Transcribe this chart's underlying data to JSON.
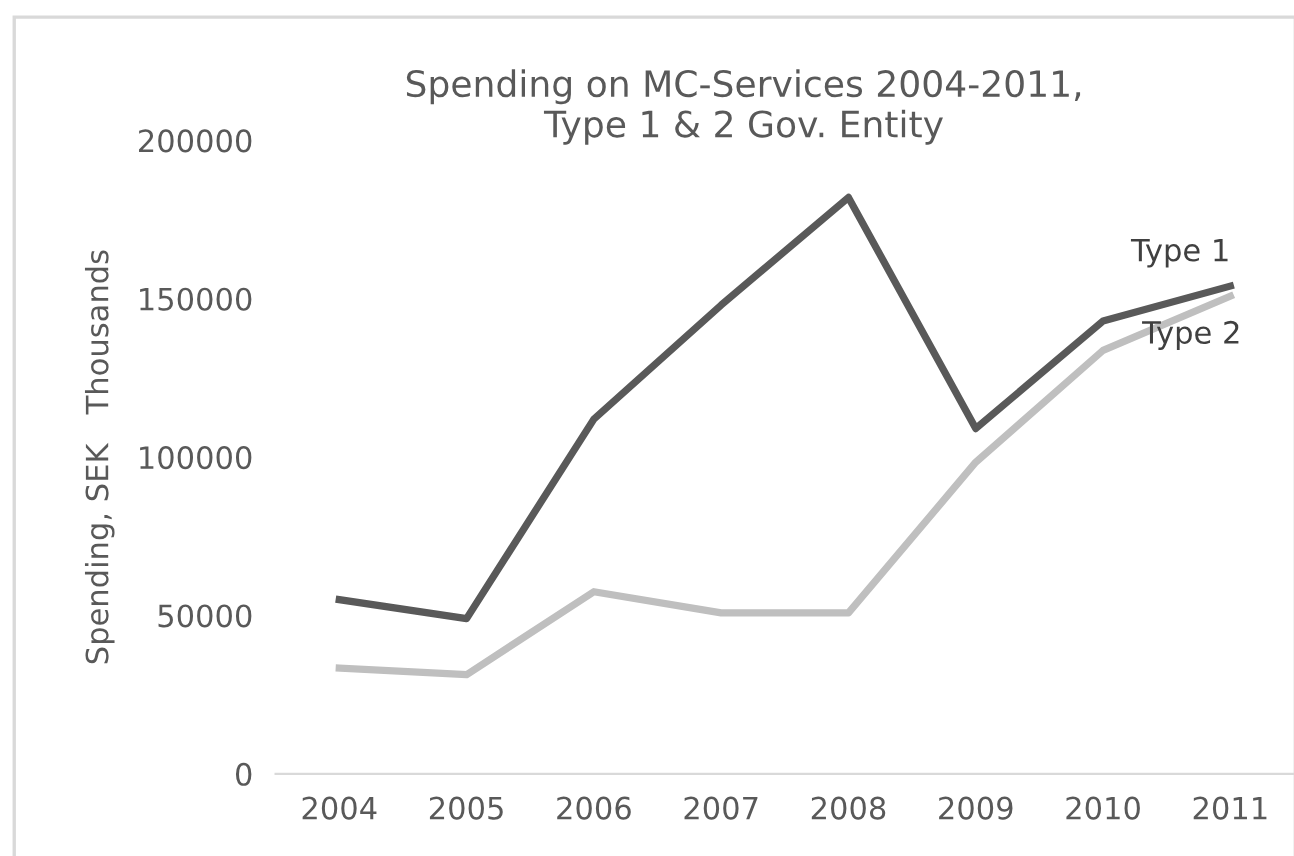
{
  "chart_data": {
    "type": "line",
    "title": "Spending on MC-Services 2004-2011,\nType 1 & 2 Gov. Entity",
    "ylabel": "Spending, SEK   Thousands",
    "categories": [
      "2004",
      "2005",
      "2006",
      "2007",
      "2008",
      "2009",
      "2010",
      "2011"
    ],
    "series": [
      {
        "name": "Type 1",
        "color": "#595959",
        "values": [
          55000,
          49000,
          112000,
          148000,
          182000,
          109000,
          143000,
          154000
        ]
      },
      {
        "name": "Type 2",
        "color": "#bfbfbf",
        "values": [
          33400,
          31300,
          57500,
          50800,
          50800,
          98400,
          133700,
          150800
        ]
      }
    ],
    "ylim": [
      0,
      200000
    ],
    "yticks": [
      0,
      50000,
      100000,
      150000,
      200000
    ],
    "grid": false,
    "legend": false,
    "marker": "none",
    "line_style": "solid"
  }
}
